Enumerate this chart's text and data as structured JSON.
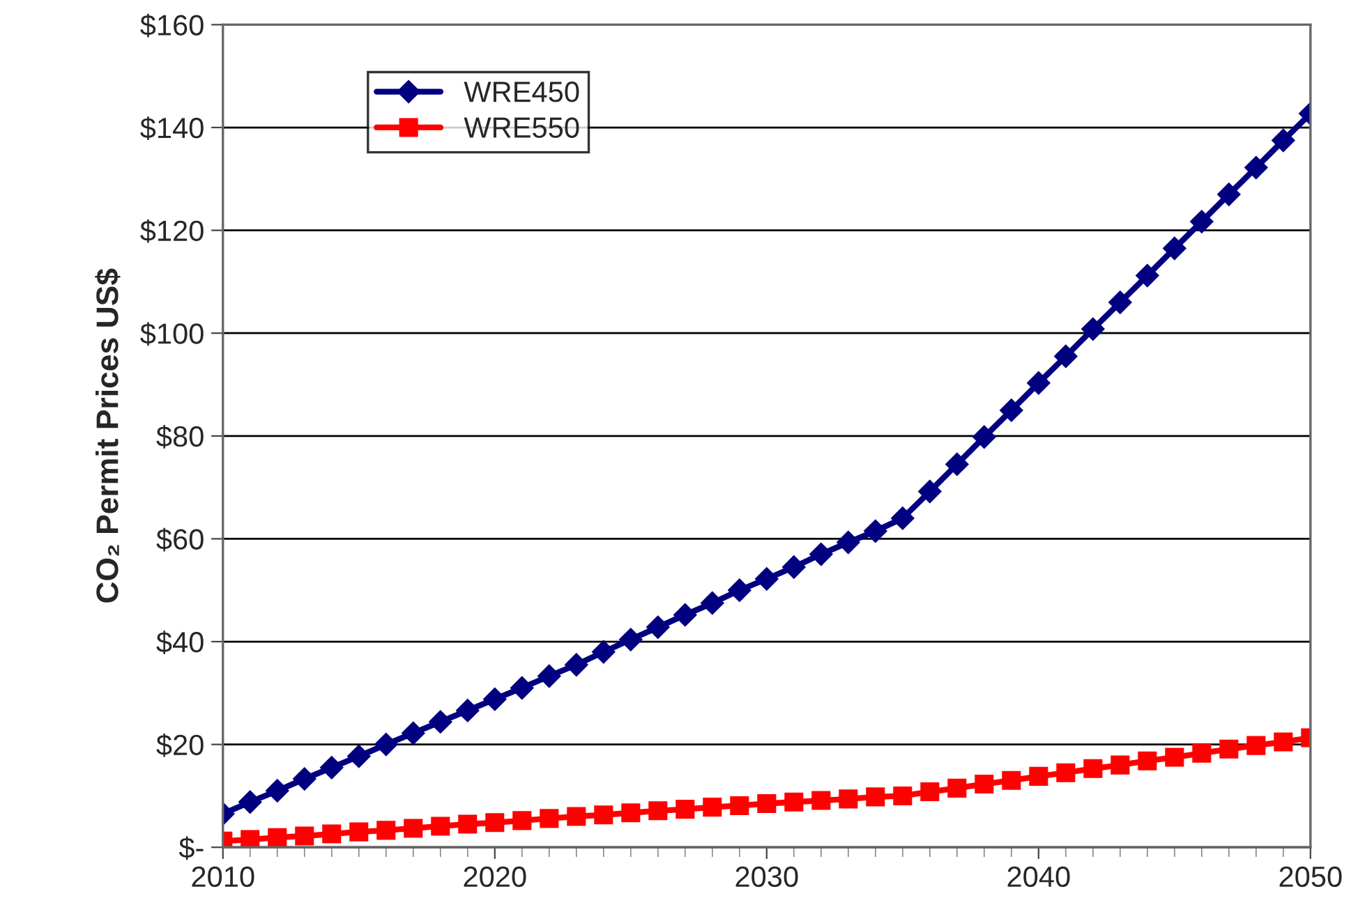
{
  "chart_data": {
    "type": "line",
    "ylabel": "CO₂ Permit Prices US$",
    "x": [
      2010,
      2011,
      2012,
      2013,
      2014,
      2015,
      2016,
      2017,
      2018,
      2019,
      2020,
      2021,
      2022,
      2023,
      2024,
      2025,
      2026,
      2027,
      2028,
      2029,
      2030,
      2031,
      2032,
      2033,
      2034,
      2035,
      2036,
      2037,
      2038,
      2039,
      2040,
      2041,
      2042,
      2043,
      2044,
      2045,
      2046,
      2047,
      2048,
      2049,
      2050
    ],
    "series": [
      {
        "name": "WRE450",
        "color": "#000080",
        "marker": "diamond",
        "values": [
          6.5,
          8.8,
          11,
          13.3,
          15.5,
          17.7,
          20,
          22.2,
          24.4,
          26.6,
          28.8,
          31,
          33.3,
          35.5,
          38,
          40.4,
          42.8,
          45.2,
          47.5,
          50,
          52.2,
          54.5,
          57,
          59.3,
          61.5,
          64,
          69.2,
          74.5,
          79.8,
          85,
          90.3,
          95.5,
          100.8,
          106,
          111.2,
          116.5,
          121.7,
          127,
          132.2,
          137.5,
          142.7
        ]
      },
      {
        "name": "WRE550",
        "color": "#ff0000",
        "marker": "square",
        "values": [
          1.2,
          1.5,
          1.9,
          2.2,
          2.6,
          3.0,
          3.3,
          3.7,
          4.1,
          4.5,
          4.8,
          5.2,
          5.6,
          6.0,
          6.3,
          6.7,
          7.1,
          7.4,
          7.8,
          8.1,
          8.5,
          8.8,
          9.1,
          9.4,
          9.8,
          10.0,
          10.8,
          11.5,
          12.3,
          13.0,
          13.8,
          14.5,
          15.3,
          16.0,
          16.8,
          17.5,
          18.3,
          19.1,
          19.8,
          20.5,
          21.3
        ]
      }
    ],
    "xlim": [
      2010,
      2050
    ],
    "xticks": [
      2010,
      2020,
      2030,
      2040,
      2050
    ],
    "ylim": [
      0,
      160
    ],
    "yticks": [
      {
        "value": 0,
        "label": "$-"
      },
      {
        "value": 20,
        "label": "$20"
      },
      {
        "value": 40,
        "label": "$40"
      },
      {
        "value": 60,
        "label": "$60"
      },
      {
        "value": 80,
        "label": "$80"
      },
      {
        "value": 100,
        "label": "$100"
      },
      {
        "value": 120,
        "label": "$120"
      },
      {
        "value": 140,
        "label": "$140"
      },
      {
        "value": 160,
        "label": "$160"
      }
    ],
    "grid": "y",
    "legend": "top left",
    "line_style": "solid"
  }
}
